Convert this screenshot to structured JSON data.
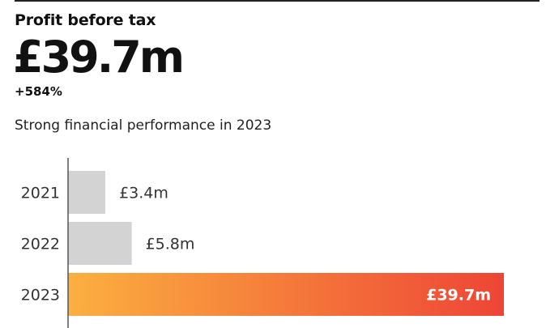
{
  "header": {
    "kicker": "Profit before tax",
    "headline": "£39.7m",
    "change": "+584%",
    "subtitle": "Strong financial performance in 2023"
  },
  "chart_data": {
    "type": "bar",
    "orientation": "horizontal",
    "categories": [
      "2021",
      "2022",
      "2023"
    ],
    "values": [
      3.4,
      5.8,
      39.7
    ],
    "value_labels": [
      "£3.4m",
      "£5.8m",
      "£39.7m"
    ],
    "unit": "£m",
    "xlim": [
      0,
      39.7
    ],
    "grid": false,
    "colors": {
      "default_bar": "#d3d3d3",
      "highlight_start": "#fbb040",
      "highlight_end": "#ee4536",
      "axis": "#555555"
    },
    "highlight_index": 2
  }
}
